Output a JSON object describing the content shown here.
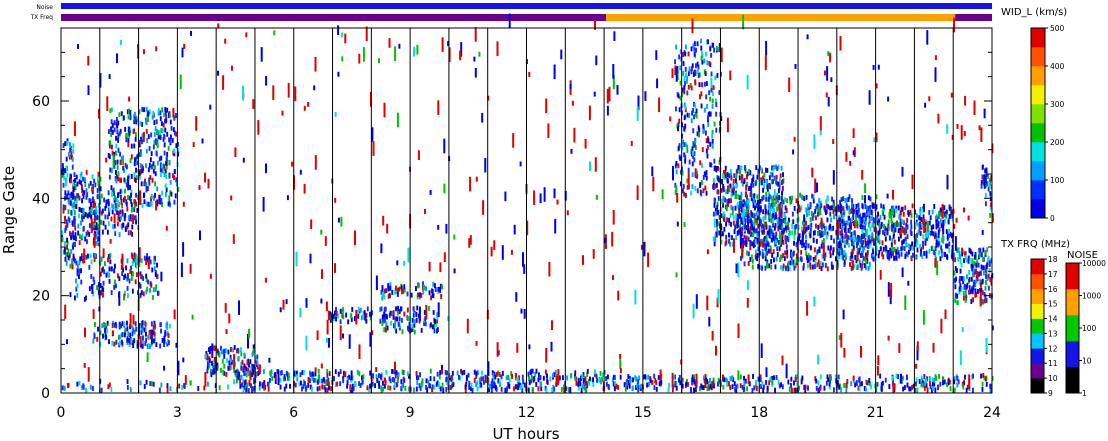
{
  "chart_data": {
    "type": "heatmap",
    "title": "",
    "xlabel": "UT hours",
    "ylabel": "Range Gate",
    "xlim": [
      0,
      24
    ],
    "ylim": [
      0,
      75
    ],
    "x_ticks": [
      "0",
      "3",
      "6",
      "9",
      "12",
      "15",
      "18",
      "21",
      "24"
    ],
    "y_ticks": [
      "0",
      "20",
      "40",
      "60"
    ],
    "hour_lines": [
      1,
      2,
      3,
      4,
      5,
      6,
      7,
      8,
      9,
      10,
      11,
      12,
      13,
      14,
      15,
      16,
      17,
      18,
      19,
      20,
      21,
      22,
      23
    ],
    "top_strips": {
      "noise_label": "Noise",
      "freq_label": "TX Freq",
      "noise_color": "#1414e6",
      "freq_segments": [
        {
          "start": 0,
          "end": 14.05,
          "color": "#6a0090"
        },
        {
          "start": 14.05,
          "end": 23.05,
          "color": "#ffa000"
        },
        {
          "start": 23.05,
          "end": 24,
          "color": "#6a0090"
        }
      ]
    },
    "scatter_regions": [
      {
        "t": [
          0.0,
          0.35
        ],
        "g": [
          26,
          46
        ],
        "w": 0.9
      },
      {
        "t": [
          0.0,
          0.3
        ],
        "g": [
          44,
          52
        ],
        "w": 0.6
      },
      {
        "t": [
          0.3,
          1.0
        ],
        "g": [
          30,
          45
        ],
        "w": 0.7
      },
      {
        "t": [
          0.7,
          2.0
        ],
        "g": [
          32,
          40
        ],
        "w": 0.6
      },
      {
        "t": [
          1.2,
          3.0
        ],
        "g": [
          38,
          58
        ],
        "w": 0.6
      },
      {
        "t": [
          0.2,
          2.5
        ],
        "g": [
          19,
          28
        ],
        "w": 0.5
      },
      {
        "t": [
          0.8,
          2.8
        ],
        "g": [
          9,
          14
        ],
        "w": 0.8
      },
      {
        "t": [
          3.7,
          5.1
        ],
        "g": [
          3,
          9
        ],
        "w": 0.9
      },
      {
        "t": [
          4.5,
          14.0
        ],
        "g": [
          0,
          4
        ],
        "w": 0.8
      },
      {
        "t": [
          0.0,
          4.5
        ],
        "g": [
          0,
          2
        ],
        "w": 0.3
      },
      {
        "t": [
          6.9,
          8.0
        ],
        "g": [
          14,
          17
        ],
        "w": 0.8
      },
      {
        "t": [
          8.2,
          9.8
        ],
        "g": [
          19,
          22
        ],
        "w": 0.8
      },
      {
        "t": [
          8.2,
          9.7
        ],
        "g": [
          12,
          17
        ],
        "w": 0.8
      },
      {
        "t": [
          14.0,
          23.0
        ],
        "g": [
          0,
          3
        ],
        "w": 0.8
      },
      {
        "t": [
          15.8,
          17.0
        ],
        "g": [
          40,
          72
        ],
        "w": 0.4
      },
      {
        "t": [
          16.8,
          18.6
        ],
        "g": [
          30,
          46
        ],
        "w": 0.9
      },
      {
        "t": [
          17.5,
          21.0
        ],
        "g": [
          25,
          40
        ],
        "w": 0.8
      },
      {
        "t": [
          20.0,
          23.0
        ],
        "g": [
          27,
          38
        ],
        "w": 0.9
      },
      {
        "t": [
          23.0,
          24.0
        ],
        "g": [
          18,
          29
        ],
        "w": 0.95
      },
      {
        "t": [
          23.7,
          24.0
        ],
        "g": [
          36,
          46
        ],
        "w": 0.6
      },
      {
        "t": [
          23.0,
          24.0
        ],
        "g": [
          0,
          3
        ],
        "w": 0.6
      }
    ],
    "width_colorbar": {
      "label": "WID_L (km/s)",
      "ticks": [
        "0",
        "100",
        "200",
        "300",
        "400",
        "500"
      ],
      "colors": [
        "#0000e6",
        "#0030ff",
        "#00a0ff",
        "#00e0e0",
        "#00c000",
        "#80e000",
        "#f0f000",
        "#ffa000",
        "#ff5000",
        "#e00000"
      ]
    },
    "freq_colorbar": {
      "label": "TX FRQ (MHz)",
      "ticks": [
        "9",
        "10",
        "11",
        "12",
        "13",
        "14",
        "15",
        "16",
        "17",
        "18"
      ],
      "colors": [
        "#000000",
        "#6a0090",
        "#1414e6",
        "#00c8ff",
        "#00c800",
        "#f0f000",
        "#ffa000",
        "#ff5000",
        "#e00000"
      ]
    },
    "noise_colorbar": {
      "label": "NOISE",
      "ticks": [
        "1",
        "10",
        "100",
        "1000",
        "10000"
      ],
      "colors": [
        "#000000",
        "#1414e6",
        "#00c800",
        "#ffa000",
        "#e00000"
      ]
    }
  }
}
